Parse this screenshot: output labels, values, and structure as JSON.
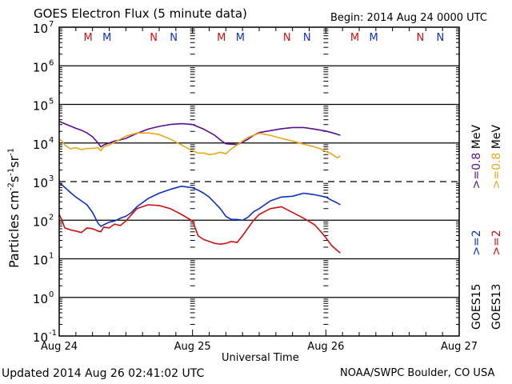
{
  "chart_data": {
    "type": "line",
    "title": "GOES Electron Flux (5 minute data)",
    "begin_label": "Begin: 2014 Aug 24 0000 UTC",
    "xlabel": "Universal Time",
    "ylabel": "Particles cm⁻²s⁻¹sr⁻¹",
    "ylabel_parts": {
      "base": "Particles cm",
      "e1": "-2",
      "s": "s",
      "e2": "-1",
      "sr": "sr",
      "e3": "-1"
    },
    "yscale": "log",
    "ylim_exponents": [
      -1,
      7
    ],
    "y_ticks": [
      {
        "base": "10",
        "exp": "7",
        "value": 7
      },
      {
        "base": "10",
        "exp": "6",
        "value": 6
      },
      {
        "base": "10",
        "exp": "5",
        "value": 5
      },
      {
        "base": "10",
        "exp": "4",
        "value": 4
      },
      {
        "base": "10",
        "exp": "3",
        "value": 3
      },
      {
        "base": "10",
        "exp": "2",
        "value": 2
      },
      {
        "base": "10",
        "exp": "1",
        "value": 1
      },
      {
        "base": "10",
        "exp": "0",
        "value": 0
      },
      {
        "base": "10",
        "exp": "-1",
        "value": -1
      }
    ],
    "x_unit": "hours since 2014 Aug 24 0000 UTC",
    "xlim": [
      0,
      72
    ],
    "x_ticks": [
      {
        "label": "Aug 24",
        "hours": 0
      },
      {
        "label": "Aug 25",
        "hours": 24
      },
      {
        "label": "Aug 26",
        "hours": 48
      },
      {
        "label": "Aug 27",
        "hours": 72
      }
    ],
    "grid_lines": [
      {
        "value": 6,
        "style": "solid"
      },
      {
        "value": 5,
        "style": "solid"
      },
      {
        "value": 4,
        "style": "solid"
      },
      {
        "value": 3,
        "style": "dashed"
      },
      {
        "value": 2,
        "style": "solid"
      },
      {
        "value": 1,
        "style": "solid"
      },
      {
        "value": 0,
        "style": "solid"
      }
    ],
    "markers": [
      {
        "label": "M",
        "hours": 5.2,
        "color": "#d01010"
      },
      {
        "label": "M",
        "hours": 8.6,
        "color": "#1030c0"
      },
      {
        "label": "N",
        "hours": 17.0,
        "color": "#d01010"
      },
      {
        "label": "N",
        "hours": 20.6,
        "color": "#1030c0"
      },
      {
        "label": "M",
        "hours": 29.2,
        "color": "#d01010"
      },
      {
        "label": "M",
        "hours": 32.6,
        "color": "#1030c0"
      },
      {
        "label": "N",
        "hours": 41.0,
        "color": "#d01010"
      },
      {
        "label": "N",
        "hours": 44.6,
        "color": "#1030c0"
      },
      {
        "label": "M",
        "hours": 53.2,
        "color": "#d01010"
      },
      {
        "label": "M",
        "hours": 56.6,
        "color": "#1030c0"
      },
      {
        "label": "N",
        "hours": 65.0,
        "color": "#d01010"
      },
      {
        "label": "N",
        "hours": 68.6,
        "color": "#1030c0"
      }
    ],
    "legend": {
      "placement": "right",
      "columns": [
        {
          "satellite": "GOES15",
          "entries": [
            {
              "text": ">=2",
              "color": "#1030c0"
            },
            {
              "text": ">=0.8",
              "color": "#5a1090"
            },
            {
              "text": "MeV",
              "color": "#000000"
            }
          ]
        },
        {
          "satellite": "GOES13",
          "entries": [
            {
              "text": ">=2",
              "color": "#d01010"
            },
            {
              "text": ">=0.8",
              "color": "#e8a818"
            },
            {
              "text": "MeV",
              "color": "#000000"
            }
          ]
        }
      ]
    },
    "series": [
      {
        "name": "GOES15 >=0.8 MeV",
        "color": "#5a1090",
        "x": [
          0,
          1,
          2,
          3,
          4,
          5,
          6,
          7,
          7.5,
          8,
          8.4,
          9,
          10,
          11,
          12,
          14,
          16,
          18,
          20,
          22,
          24,
          25,
          26,
          27,
          28,
          29,
          30,
          31,
          32,
          33,
          34,
          35,
          36,
          38,
          40,
          42,
          44,
          46,
          48,
          49,
          50,
          50.6
        ],
        "y": [
          4.56,
          4.5,
          4.44,
          4.38,
          4.33,
          4.26,
          4.16,
          4.0,
          3.9,
          3.95,
          3.97,
          4.0,
          4.05,
          4.08,
          4.12,
          4.25,
          4.36,
          4.43,
          4.48,
          4.5,
          4.48,
          4.42,
          4.36,
          4.28,
          4.2,
          4.08,
          3.98,
          3.97,
          3.96,
          4.02,
          4.1,
          4.2,
          4.27,
          4.32,
          4.37,
          4.4,
          4.4,
          4.36,
          4.31,
          4.27,
          4.23,
          4.2
        ]
      },
      {
        "name": "GOES13 >=0.8 MeV",
        "color": "#e8a818",
        "x": [
          0,
          0.5,
          1,
          2,
          3,
          4,
          5,
          6,
          7,
          7.5,
          8,
          9,
          10,
          11,
          12,
          14,
          16,
          18,
          20,
          22,
          24,
          25,
          26,
          27,
          28,
          29,
          30,
          31,
          32,
          33,
          34,
          35,
          36,
          38,
          40,
          42,
          44,
          46,
          47,
          48,
          49,
          50,
          50.6
        ],
        "y": [
          4.1,
          4.05,
          3.95,
          3.85,
          3.88,
          3.83,
          3.86,
          3.86,
          3.88,
          3.8,
          3.9,
          3.95,
          4.02,
          4.1,
          4.18,
          4.26,
          4.26,
          4.22,
          4.1,
          3.95,
          3.8,
          3.74,
          3.74,
          3.7,
          3.72,
          3.76,
          3.72,
          3.85,
          3.95,
          4.05,
          4.15,
          4.2,
          4.25,
          4.2,
          4.12,
          4.05,
          3.97,
          3.9,
          3.85,
          3.78,
          3.72,
          3.62,
          3.66
        ]
      },
      {
        "name": "GOES15 >=2 MeV",
        "color": "#1030c0",
        "x": [
          0,
          0.5,
          1,
          2,
          3,
          4,
          5,
          6,
          7,
          7.5,
          8,
          9,
          10,
          11,
          12,
          13,
          14,
          16,
          18,
          20,
          22,
          24,
          25,
          26,
          27,
          28,
          29,
          30,
          31,
          32,
          33,
          34,
          35,
          36,
          38,
          40,
          42,
          44,
          46,
          48,
          49,
          50,
          50.6
        ],
        "y": [
          2.96,
          2.92,
          2.85,
          2.72,
          2.6,
          2.5,
          2.4,
          2.2,
          1.92,
          1.84,
          1.88,
          1.95,
          1.98,
          2.05,
          2.1,
          2.2,
          2.35,
          2.56,
          2.7,
          2.8,
          2.88,
          2.84,
          2.78,
          2.7,
          2.6,
          2.45,
          2.3,
          2.1,
          2.02,
          2.02,
          2.0,
          2.08,
          2.22,
          2.3,
          2.5,
          2.6,
          2.62,
          2.7,
          2.66,
          2.6,
          2.52,
          2.45,
          2.4
        ]
      },
      {
        "name": "GOES13 >=2 MeV",
        "color": "#d01010",
        "x": [
          0,
          0.5,
          1,
          2,
          3,
          4,
          5,
          6,
          7,
          7.5,
          8,
          9,
          10,
          11,
          12,
          14,
          16,
          18,
          20,
          22,
          24,
          25,
          26,
          27,
          28,
          29,
          30,
          31,
          32,
          33,
          34,
          35,
          36,
          38,
          40,
          42,
          44,
          46,
          47,
          48,
          49,
          50,
          50.6
        ],
        "y": [
          2.15,
          2.0,
          1.8,
          1.75,
          1.72,
          1.68,
          1.8,
          1.78,
          1.72,
          1.7,
          1.82,
          1.8,
          1.9,
          1.86,
          1.98,
          2.3,
          2.4,
          2.38,
          2.3,
          2.15,
          1.98,
          1.6,
          1.5,
          1.45,
          1.4,
          1.38,
          1.4,
          1.45,
          1.42,
          1.6,
          1.8,
          2.0,
          2.15,
          2.3,
          2.35,
          2.2,
          2.05,
          1.88,
          1.72,
          1.55,
          1.35,
          1.22,
          1.15
        ]
      }
    ]
  },
  "footer": {
    "updated": "Updated 2014 Aug 26 02:41:02 UTC",
    "source": "NOAA/SWPC Boulder, CO USA"
  }
}
